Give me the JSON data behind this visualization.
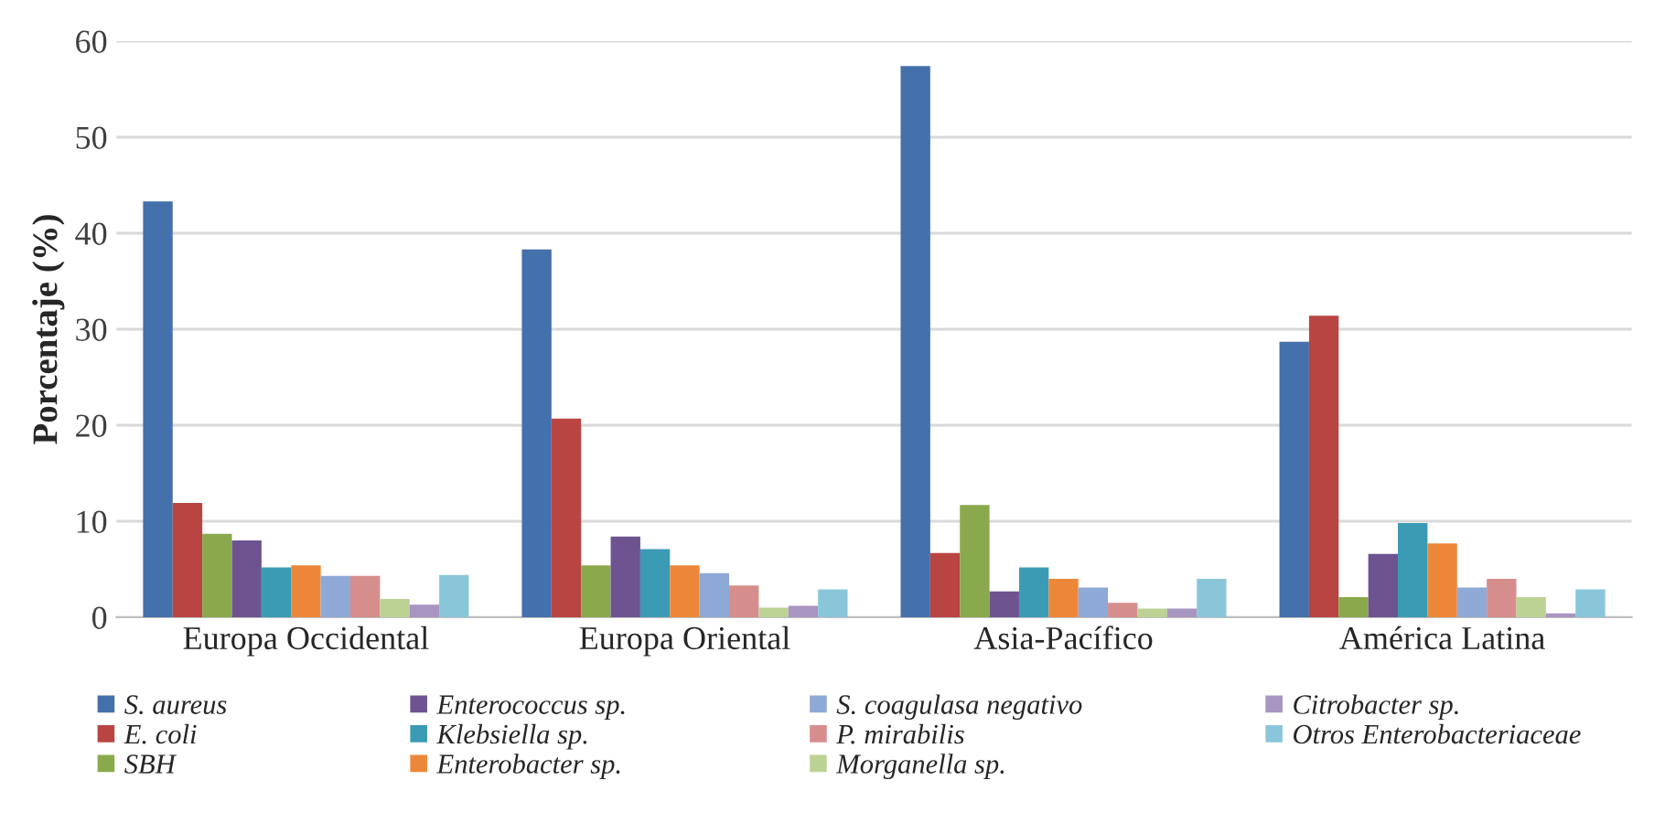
{
  "chart_data": {
    "type": "bar",
    "ylabel": "Porcentaje (%)",
    "categories": [
      "Europa Occidental",
      "Europa Oriental",
      "Asia-Pacífico",
      "América Latina"
    ],
    "ylim": [
      0,
      60
    ],
    "yticks": [
      0,
      10,
      20,
      30,
      40,
      50,
      60
    ],
    "grid": "y",
    "legend": "bottom",
    "series": [
      {
        "name": "S. aureus",
        "color": "#4470ab",
        "values": [
          43.3,
          38.3,
          57.4,
          28.7
        ]
      },
      {
        "name": "E. coli",
        "color": "#b94542",
        "values": [
          11.9,
          20.7,
          6.7,
          31.4
        ]
      },
      {
        "name": "SBH",
        "color": "#8aa94c",
        "values": [
          8.7,
          5.4,
          11.7,
          2.1
        ]
      },
      {
        "name": "Enterococcus sp.",
        "color": "#6e5391",
        "values": [
          8.0,
          8.4,
          2.7,
          6.6
        ]
      },
      {
        "name": "Klebsiella sp.",
        "color": "#3b9bb5",
        "values": [
          5.2,
          7.1,
          5.2,
          9.8
        ]
      },
      {
        "name": "Enterobacter sp.",
        "color": "#ec8739",
        "values": [
          5.4,
          5.4,
          4.0,
          7.7
        ]
      },
      {
        "name": "S. coagulasa negativo",
        "color": "#8ea9d6",
        "values": [
          4.3,
          4.6,
          3.1,
          3.1
        ]
      },
      {
        "name": "P. mirabilis",
        "color": "#d68e8c",
        "values": [
          4.3,
          3.3,
          1.5,
          4.0
        ]
      },
      {
        "name": "Morganella sp.",
        "color": "#bcd295",
        "values": [
          1.9,
          1.0,
          0.9,
          2.1
        ]
      },
      {
        "name": "Citrobacter sp.",
        "color": "#a895c1",
        "values": [
          1.3,
          1.2,
          0.9,
          0.4
        ]
      },
      {
        "name": "Otros Enterobacteriaceae",
        "color": "#8ac6da",
        "values": [
          4.4,
          2.9,
          4.0,
          2.9
        ]
      }
    ]
  }
}
